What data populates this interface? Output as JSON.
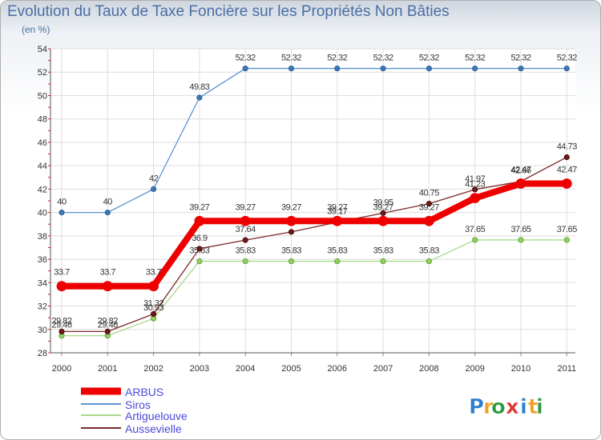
{
  "chart_data": {
    "type": "line",
    "title": "Evolution du Taux de Taxe Foncière sur les Propriétés Non Bâties",
    "unit_label": "(en %)",
    "x": [
      "2000",
      "2001",
      "2002",
      "2003",
      "2004",
      "2005",
      "2006",
      "2007",
      "2008",
      "2009",
      "2010",
      "2011"
    ],
    "ylim": [
      28,
      54
    ],
    "yticks": [
      28,
      30,
      32,
      34,
      36,
      38,
      40,
      42,
      44,
      46,
      48,
      50,
      52,
      54
    ],
    "series": [
      {
        "name": "Siros",
        "color": "#5b95d1",
        "values": [
          40,
          40,
          42,
          49.83,
          52.32,
          52.32,
          52.32,
          52.32,
          52.32,
          52.32,
          52.32,
          52.32
        ]
      },
      {
        "name": "Artiguelouve",
        "color": "#a8d88a",
        "values": [
          29.46,
          29.46,
          30.93,
          35.83,
          35.83,
          35.83,
          35.83,
          35.83,
          35.83,
          37.65,
          37.65,
          37.65
        ]
      },
      {
        "name": "Aussevielle",
        "color": "#7a2a2a",
        "values": [
          29.82,
          29.82,
          31.32,
          36.9,
          37.64,
          38.34,
          39.17,
          39.95,
          40.75,
          41.97,
          42.66,
          44.73
        ]
      },
      {
        "name": "ARBUS",
        "color": "#ee0000",
        "values": [
          33.7,
          33.7,
          33.7,
          39.27,
          39.27,
          39.27,
          39.27,
          39.27,
          39.27,
          41.23,
          42.47,
          42.47
        ]
      }
    ],
    "legend": [
      "ARBUS",
      "Siros",
      "Artiguelouve",
      "Aussevielle"
    ],
    "legend_position": "bottom-left"
  },
  "brand": {
    "name": "Proxiti",
    "letters": [
      "P",
      "r",
      "o",
      "x",
      "i",
      "t",
      "i"
    ],
    "colors": [
      "#2a7fd0",
      "#f0a020",
      "#2a9a40",
      "#e03030",
      "#2a7fd0",
      "#f0a020",
      "#2a9a40"
    ]
  }
}
